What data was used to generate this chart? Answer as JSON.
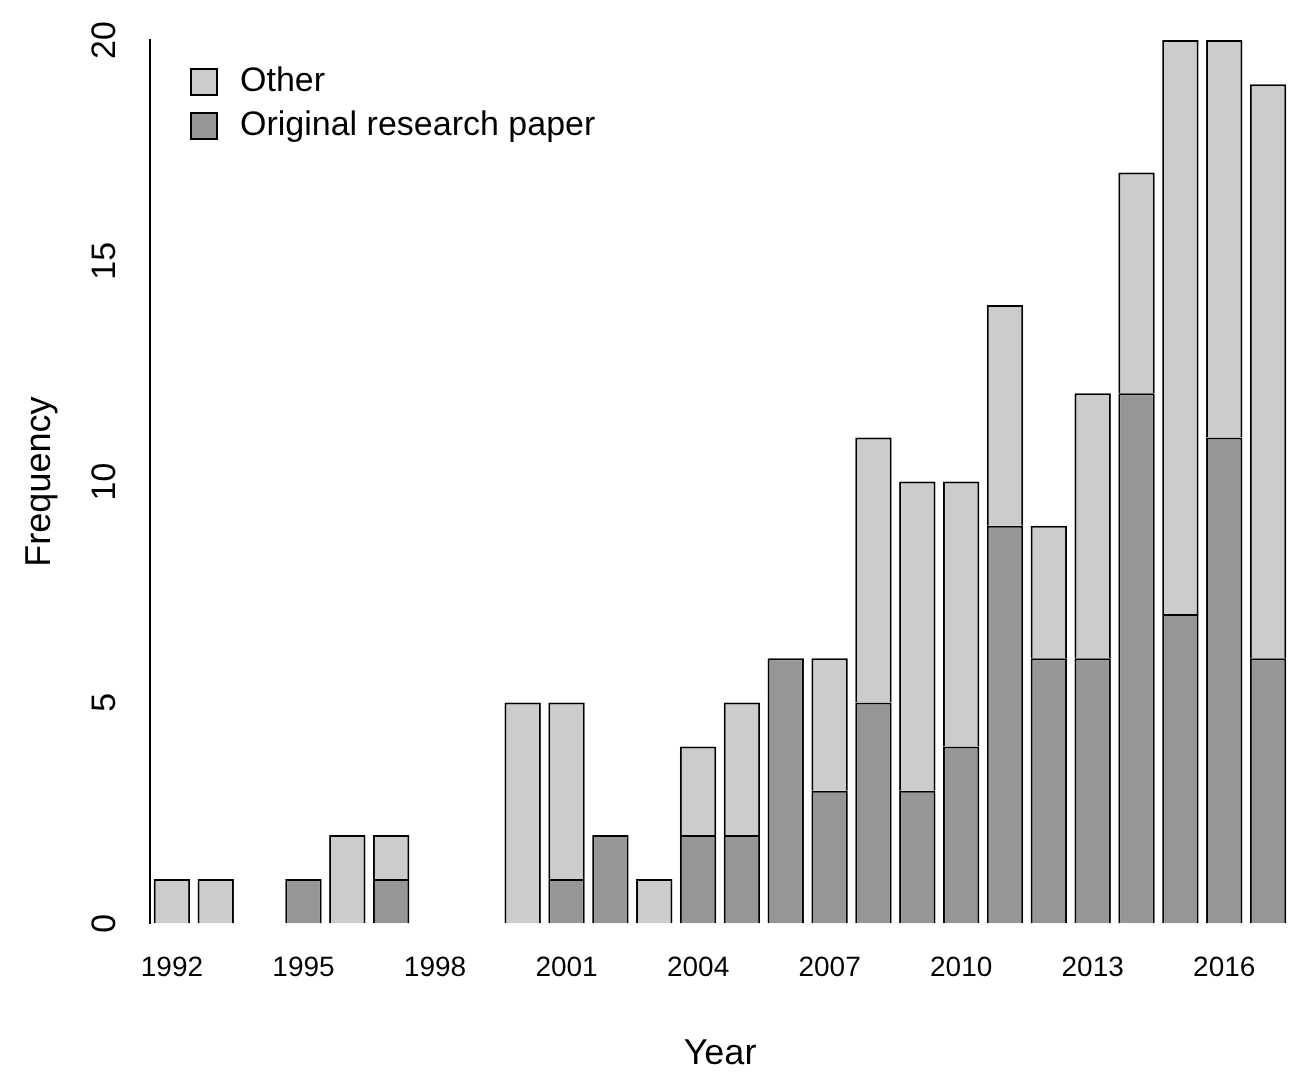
{
  "chart_data": {
    "type": "bar",
    "stacked": true,
    "categories": [
      "1992",
      null,
      null,
      "1995",
      null,
      null,
      "1998",
      null,
      null,
      "2001",
      null,
      null,
      "2004",
      null,
      null,
      "2007",
      null,
      null,
      "2010",
      null,
      null,
      "2013",
      null,
      null,
      "2016",
      null
    ],
    "series": [
      {
        "name": "Original research paper",
        "color": "#969696",
        "values": [
          0,
          0,
          0,
          1,
          0,
          1,
          0,
          0,
          0,
          1,
          2,
          0,
          2,
          2,
          6,
          3,
          5,
          3,
          4,
          9,
          6,
          6,
          12,
          7,
          11,
          6
        ]
      },
      {
        "name": "Other",
        "color": "#cccccc",
        "values": [
          1,
          1,
          0,
          0,
          2,
          1,
          0,
          0,
          5,
          4,
          0,
          1,
          2,
          3,
          0,
          3,
          6,
          7,
          6,
          5,
          3,
          6,
          5,
          13,
          9,
          13
        ]
      }
    ],
    "xlabel": "Year",
    "ylabel": "Frequency",
    "ylim": [
      0,
      20
    ],
    "yticks": [
      0,
      5,
      10,
      15,
      20
    ],
    "grid": false,
    "legend": "top left"
  }
}
